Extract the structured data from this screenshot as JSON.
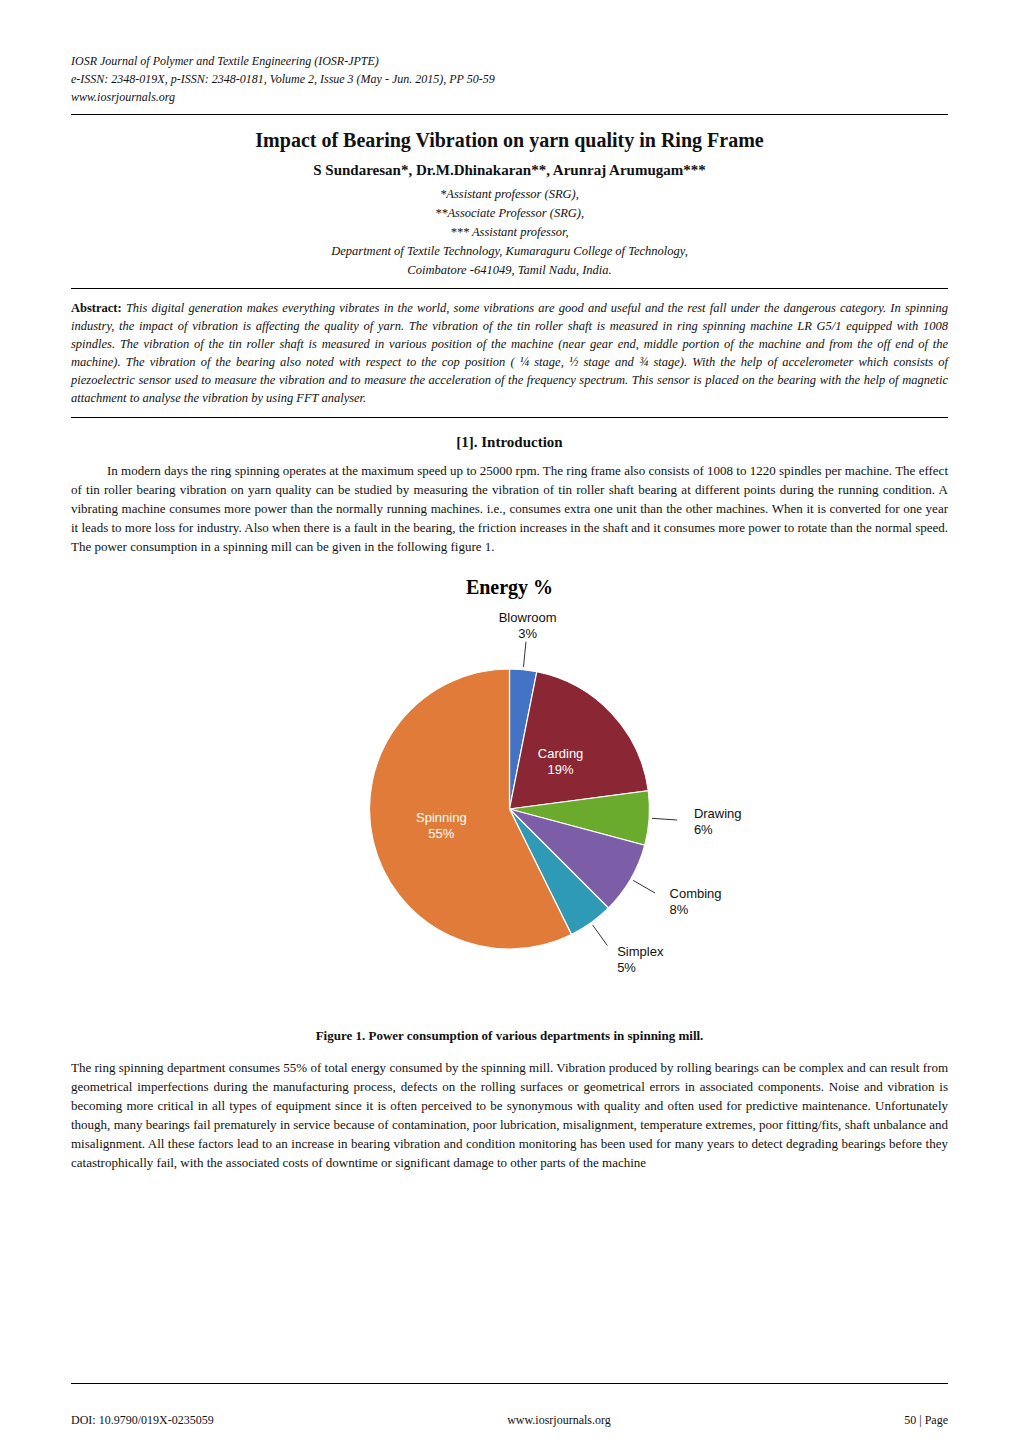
{
  "page": {
    "header_lines": [
      "IOSR Journal of Polymer and Textile Engineering (IOSR-JPTE)",
      "e-ISSN: 2348-019X, p-ISSN: 2348-0181, Volume 2, Issue 3 (May - Jun. 2015), PP 50-59",
      "www.iosrjournals.org"
    ],
    "main_title": "Impact of Bearing Vibration on yarn quality in Ring Frame",
    "authors": "S Sundaresan*, Dr.M.Dhinakaran**, Arunraj Arumugam***",
    "author_notes": [
      "*Assistant professor (SRG),",
      "**Associate Professor (SRG),",
      "*** Assistant professor,",
      "Department of Textile Technology, Kumaraguru College of Technology,",
      "Coimbatore -641049, Tamil Nadu, India."
    ],
    "abstract_label": "Abstract:",
    "abstract_text": "This digital generation makes everything vibrates in the world, some vibrations are good and useful and the rest fall under the dangerous category. In spinning industry, the impact of vibration is affecting the quality of yarn. The vibration of the tin roller shaft is measured in ring spinning machine LR G5/1 equipped with 1008 spindles. The vibration of the tin roller shaft is measured in various position of the machine (near gear end, middle portion of the machine and from the off end of the machine). The vibration of the bearing also noted with respect to the cop position ( ¼ stage, ½ stage and ¾ stage). With the help of accelerometer which consists of piezoelectric sensor used to measure the vibration and to measure the acceleration of the frequency spectrum. This sensor is placed on the bearing with the help of magnetic attachment to analyse the vibration by using FFT analyser.",
    "section_title": "[1]. Introduction",
    "intro_text": "In modern days the ring spinning operates at the maximum speed up to 25000 rpm. The ring frame also consists of 1008 to 1220 spindles per machine. The effect of tin roller bearing vibration on yarn quality can be studied by measuring the vibration of tin roller shaft bearing at different points during the running condition. A vibrating machine consumes more power than the normally running machines. i.e., consumes extra one unit than the other machines. When it is converted for one year it leads to more loss for industry. Also when there is a fault in the bearing, the friction increases in the shaft and it consumes more power to rotate than the normal speed. The power consumption in a spinning mill can be given in the following figure 1.",
    "figure_caption": "Figure 1.  Power consumption of various departments in spinning mill.",
    "post_fig_text": "The ring spinning department consumes 55% of total energy consumed by the spinning mill. Vibration produced by rolling bearings can be complex and can result from geometrical imperfections during the manufacturing process, defects on the rolling surfaces or geometrical errors in associated components. Noise and vibration is becoming more critical in all types of equipment since it is often perceived to be synonymous with quality and often used for predictive maintenance. Unfortunately though, many bearings fail prematurely in service because of contamination, poor lubrication, misalignment, temperature extremes, poor fitting/fits, shaft unbalance and misalignment. All these factors lead to an increase in bearing vibration and condition monitoring has been used for many years to detect degrading bearings before they catastrophically fail, with the associated costs of downtime or significant damage to other parts of the machine",
    "footer_doi": "DOI: 10.9790/019X-0235059",
    "footer_url": "www.iosrjournals.org",
    "footer_page": "50 | Page"
  },
  "chart_data": {
    "type": "pie",
    "title": "Energy %",
    "categories": [
      "Blowroom",
      "Carding",
      "Drawing",
      "Combing",
      "Simplex",
      "Spinning"
    ],
    "values": [
      3,
      19,
      6,
      8,
      5,
      55
    ],
    "value_labels": [
      "3%",
      "19%",
      "6%",
      "8%",
      "5%",
      "55%"
    ],
    "colors": [
      "#4472C4",
      "#8B2635",
      "#6AAB2E",
      "#7B5EA7",
      "#2E9AB5",
      "#E07B39"
    ],
    "data_labels": true
  }
}
